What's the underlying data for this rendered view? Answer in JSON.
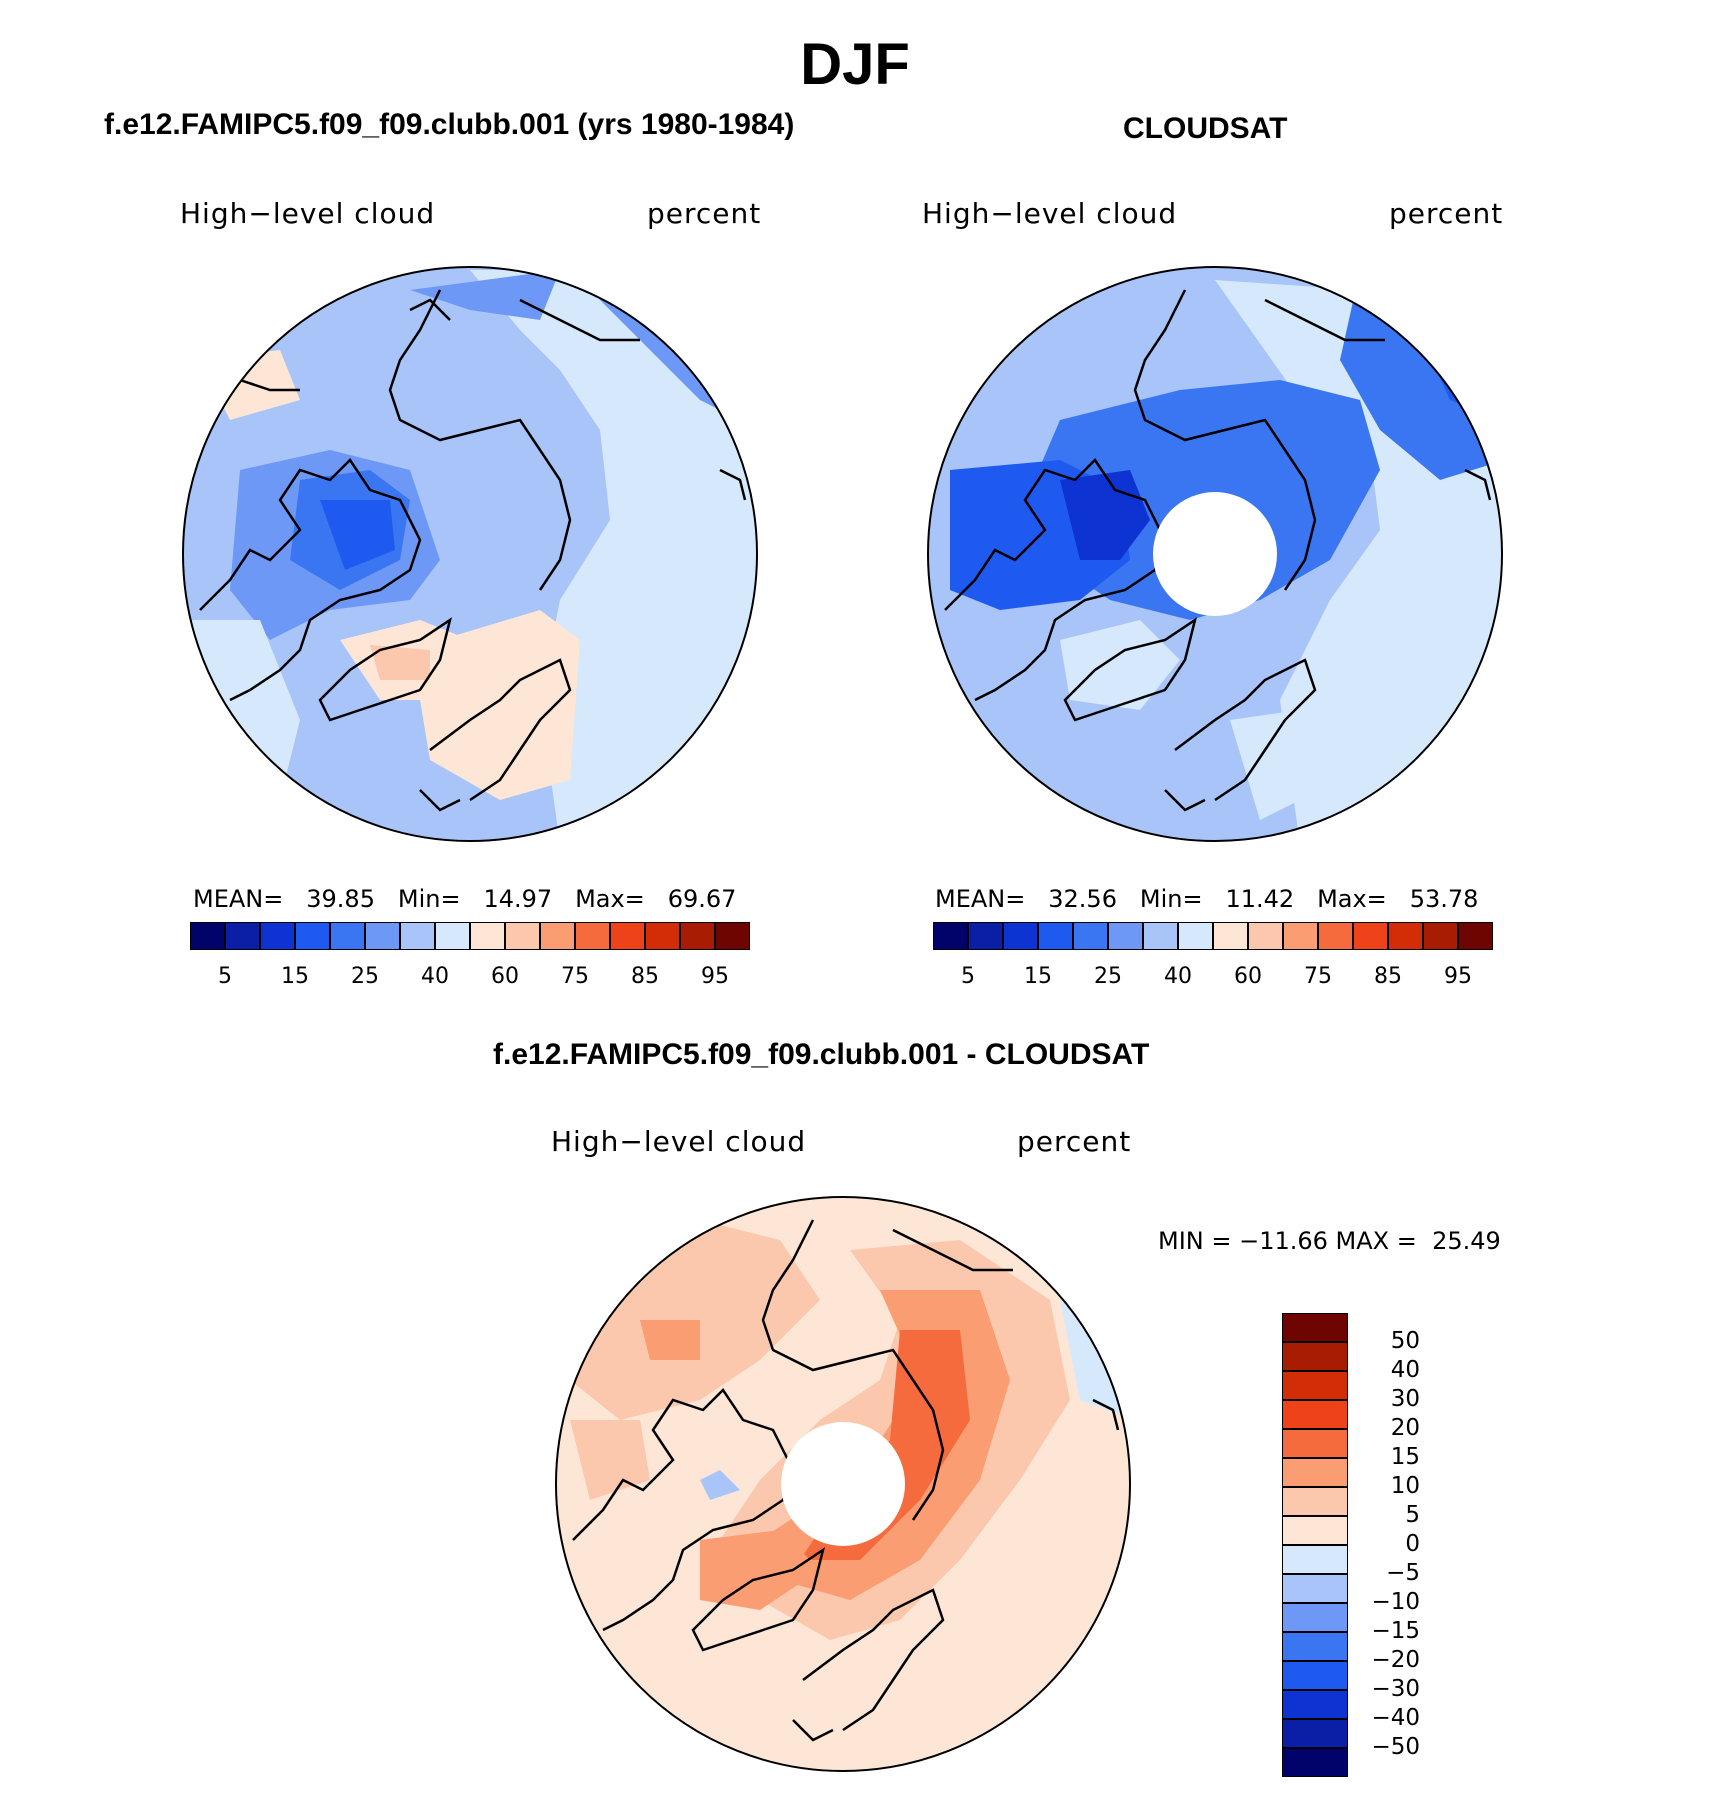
{
  "page_title": "DJF",
  "panels": [
    {
      "id": "model",
      "case_title": "f.e12.FAMIPC5.f09_f09.clubb.001 (yrs 1980-1984)",
      "variable": "High−level cloud",
      "units": "percent",
      "stats": {
        "mean_label": "MEAN=",
        "mean": "39.85",
        "min_label": "Min=",
        "min": "14.97",
        "max_label": "Max=",
        "max": "69.67"
      }
    },
    {
      "id": "obs",
      "case_title": "CLOUDSAT",
      "variable": "High−level cloud",
      "units": "percent",
      "stats": {
        "mean_label": "MEAN=",
        "mean": "32.56",
        "min_label": "Min=",
        "min": "11.42",
        "max_label": "Max=",
        "max": "53.78"
      }
    },
    {
      "id": "diff",
      "case_title": "f.e12.FAMIPC5.f09_f09.clubb.001 - CLOUDSAT",
      "variable": "High−level cloud",
      "units": "percent",
      "minmax_text": "MIN = −11.66 MAX =  25.49"
    }
  ],
  "colorbar_abs": {
    "colors": [
      "#02026b",
      "#0a1ea6",
      "#0d34d2",
      "#1e5af0",
      "#3b76f2",
      "#6e98f5",
      "#a8c4f8",
      "#d6e8fb",
      "#fde6d5",
      "#fcc8ad",
      "#fa9d72",
      "#f66b3d",
      "#ee4318",
      "#d22d07",
      "#a81c03",
      "#6e0500"
    ],
    "labels": [
      "5",
      "15",
      "25",
      "40",
      "60",
      "75",
      "85",
      "95"
    ]
  },
  "colorbar_diff": {
    "colors_top_to_bottom": [
      "#6e0500",
      "#a81c03",
      "#d22d07",
      "#ee4318",
      "#f66b3d",
      "#fa9d72",
      "#fcc8ad",
      "#fde6d5",
      "#d6e8fb",
      "#a8c4f8",
      "#6e98f5",
      "#3b76f2",
      "#1e5af0",
      "#0d34d2",
      "#0a1ea6",
      "#02026b"
    ],
    "labels_top_to_bottom": [
      "50",
      "40",
      "30",
      "20",
      "15",
      "10",
      "5",
      "0",
      "−5",
      "−10",
      "−15",
      "−20",
      "−30",
      "−40",
      "−50"
    ]
  },
  "map_colors": {
    "very_light_blue": "#d6e8fb",
    "light_blue": "#a8c4f8",
    "mid_blue": "#6e98f5",
    "blue": "#3b76f2",
    "deep_blue": "#1e5af0",
    "darkest_blue": "#0d34d2",
    "peach": "#fde6d5",
    "light_orange": "#fcc8ad",
    "orange": "#fa9d72",
    "deep_orange": "#f66b3d",
    "red_orange": "#ee4318"
  }
}
